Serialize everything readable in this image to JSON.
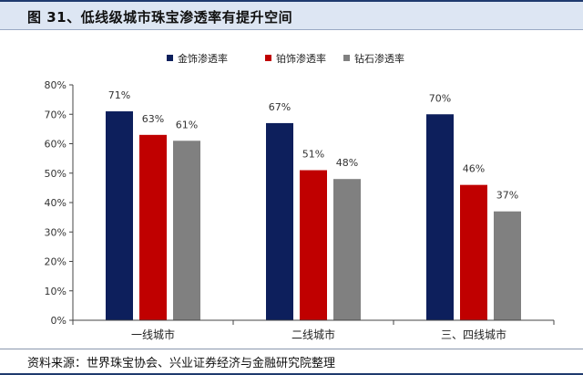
{
  "header": {
    "title": "图 31、低线级城市珠宝渗透率有提升空间"
  },
  "footer": {
    "source": "资料来源：世界珠宝协会、兴业证券经济与金融研究院整理"
  },
  "chart_data": {
    "type": "bar",
    "categories": [
      "一线城市",
      "二线城市",
      "三、四线城市"
    ],
    "series": [
      {
        "name": "金饰渗透率",
        "color": "#0d1f5c",
        "values": [
          71,
          67,
          70
        ]
      },
      {
        "name": "铂饰渗透率",
        "color": "#c00000",
        "values": [
          63,
          51,
          46
        ]
      },
      {
        "name": "钻石渗透率",
        "color": "#808080",
        "values": [
          61,
          48,
          37
        ]
      }
    ],
    "value_labels": [
      [
        "71%",
        "67%",
        "70%"
      ],
      [
        "63%",
        "51%",
        "46%"
      ],
      [
        "61%",
        "48%",
        "37%"
      ]
    ],
    "yticks": [
      "0%",
      "10%",
      "20%",
      "30%",
      "40%",
      "50%",
      "60%",
      "70%",
      "80%"
    ],
    "ylim": [
      0,
      80
    ],
    "legend_position": "top-center",
    "grid": false
  }
}
